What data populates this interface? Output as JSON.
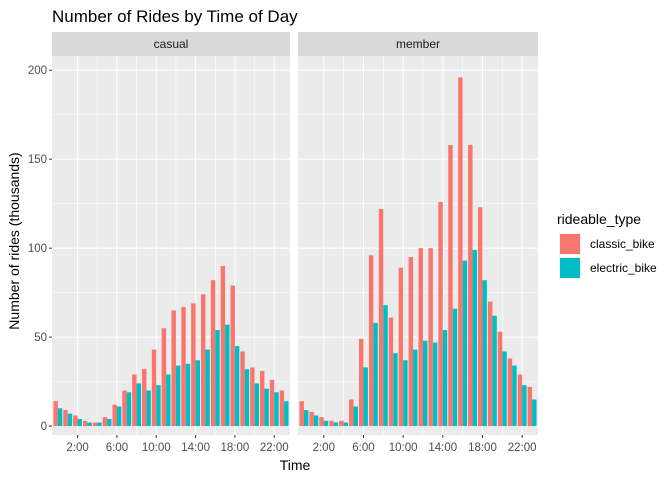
{
  "chart_data": {
    "type": "bar",
    "title": "Number of Rides by Time of Day",
    "xlabel": "Time",
    "ylabel": "Number of rides (thousands)",
    "ylim": [
      -5,
      208
    ],
    "yticks": [
      0,
      50,
      100,
      150,
      200
    ],
    "xticks": [
      {
        "hour": 2,
        "label": "2:00"
      },
      {
        "hour": 6,
        "label": "6:00"
      },
      {
        "hour": 10,
        "label": "10:00"
      },
      {
        "hour": 14,
        "label": "14:00"
      },
      {
        "hour": 18,
        "label": "18:00"
      },
      {
        "hour": 22,
        "label": "22:00"
      }
    ],
    "hours": [
      0,
      1,
      2,
      3,
      4,
      5,
      6,
      7,
      8,
      9,
      10,
      11,
      12,
      13,
      14,
      15,
      16,
      17,
      18,
      19,
      20,
      21,
      22,
      23
    ],
    "legend": {
      "title": "rideable_type",
      "position": "right",
      "entries": [
        {
          "name": "classic_bike",
          "color": "#F8766D"
        },
        {
          "name": "electric_bike",
          "color": "#00BFC4"
        }
      ]
    },
    "grid": true,
    "panels": [
      {
        "name": "casual",
        "series": [
          {
            "name": "classic_bike",
            "values": [
              14,
              9,
              6,
              3,
              2,
              5,
              12,
              20,
              29,
              32,
              43,
              55,
              65,
              67,
              69,
              74,
              82,
              90,
              79,
              42,
              33,
              31,
              26,
              20
            ]
          },
          {
            "name": "electric_bike",
            "values": [
              10,
              7,
              4,
              2,
              2,
              4,
              11,
              19,
              24,
              20,
              23,
              29,
              34,
              35,
              37,
              43,
              54,
              57,
              45,
              32,
              24,
              21,
              19,
              14
            ]
          }
        ]
      },
      {
        "name": "member",
        "series": [
          {
            "name": "classic_bike",
            "values": [
              14,
              8,
              5,
              3,
              3,
              15,
              49,
              96,
              122,
              61,
              89,
              95,
              100,
              100,
              126,
              158,
              196,
              158,
              123,
              70,
              53,
              38,
              29,
              22
            ]
          },
          {
            "name": "electric_bike",
            "values": [
              9,
              6,
              3,
              2,
              2,
              11,
              33,
              58,
              68,
              41,
              37,
              43,
              48,
              47,
              54,
              66,
              93,
              99,
              82,
              62,
              42,
              34,
              23,
              15
            ]
          }
        ]
      }
    ]
  }
}
